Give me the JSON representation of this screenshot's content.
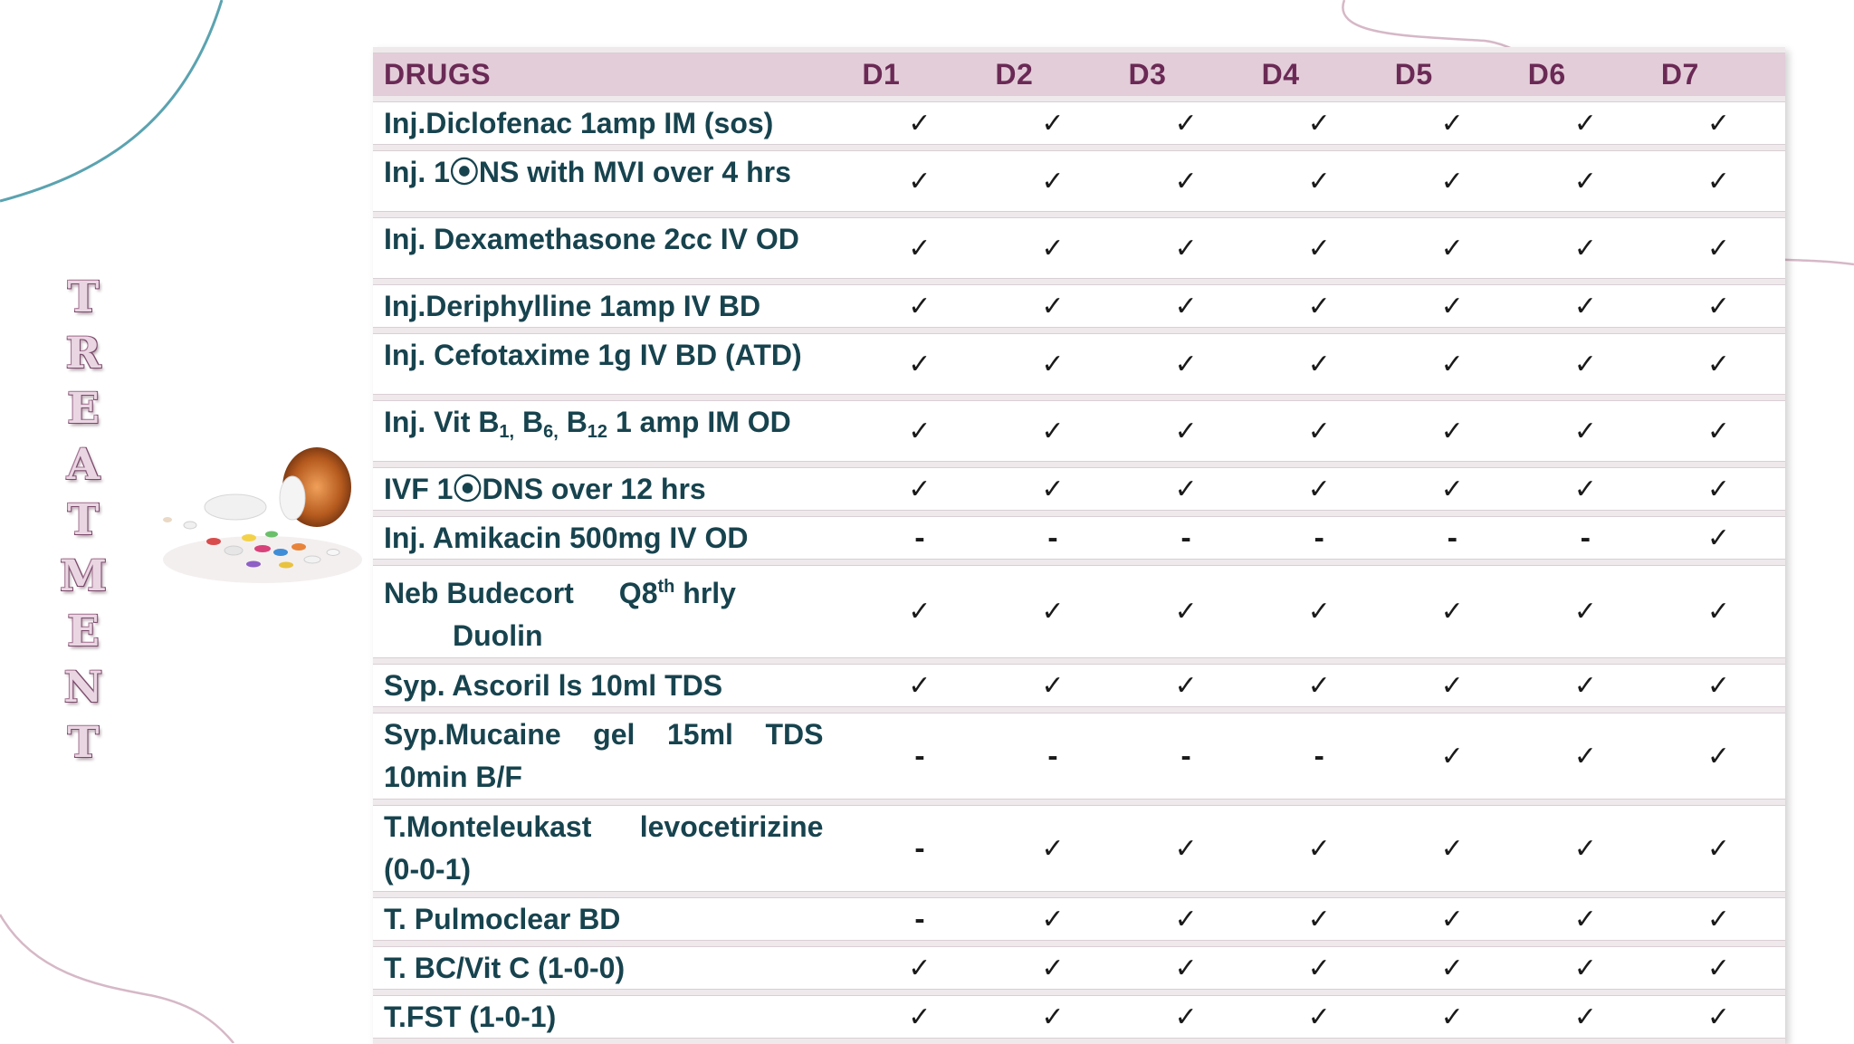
{
  "slide": {
    "vertical_title": "TREATMENT",
    "pills_image": "pills-and-bottle-image"
  },
  "table": {
    "headers": {
      "drug": "DRUGS",
      "days": [
        "D1",
        "D2",
        "D3",
        "D4",
        "D5",
        "D6",
        "D7"
      ]
    },
    "rows": [
      {
        "drug_line1": "Inj.Diclofenac 1amp IM (sos)",
        "marks": [
          "✓",
          "✓",
          "✓",
          "✓",
          "✓",
          "✓",
          "✓"
        ]
      },
      {
        "drug_line1": "Inj. 1⦿NS with MVI over 4 hrs",
        "marks": [
          "✓",
          "✓",
          "✓",
          "✓",
          "✓",
          "✓",
          "✓"
        ]
      },
      {
        "drug_line1": "Inj. Dexamethasone 2cc IV OD",
        "marks": [
          "✓",
          "✓",
          "✓",
          "✓",
          "✓",
          "✓",
          "✓"
        ]
      },
      {
        "drug_line1": "Inj.Deriphylline 1amp IV BD",
        "marks": [
          "✓",
          "✓",
          "✓",
          "✓",
          "✓",
          "✓",
          "✓"
        ]
      },
      {
        "drug_line1": "Inj. Cefotaxime 1g IV BD (ATD)",
        "marks": [
          "✓",
          "✓",
          "✓",
          "✓",
          "✓",
          "✓",
          "✓"
        ]
      },
      {
        "drug_prefix": "Inj. Vit B",
        "sub1": "1,",
        "mid1": " B",
        "sub2": "6,",
        "mid2": " B",
        "sub3": "12",
        "drug_suffix": " 1 amp IM OD",
        "marks": [
          "✓",
          "✓",
          "✓",
          "✓",
          "✓",
          "✓",
          "✓"
        ]
      },
      {
        "drug_line1": "IVF 1⦿DNS over 12 hrs",
        "marks": [
          "✓",
          "✓",
          "✓",
          "✓",
          "✓",
          "✓",
          "✓"
        ]
      },
      {
        "drug_line1": "Inj. Amikacin 500mg IV OD",
        "marks": [
          "-",
          "-",
          "-",
          "-",
          "-",
          "-",
          "✓"
        ]
      },
      {
        "drug_part1": "Neb Budecort",
        "drug_part2": "Q8",
        "drug_sup": "th",
        "drug_part3": " hrly",
        "drug_line2": "Duolin",
        "marks": [
          "✓",
          "✓",
          "✓",
          "✓",
          "✓",
          "✓",
          "✓"
        ]
      },
      {
        "drug_line1": "Syp. Ascoril ls 10ml TDS",
        "marks": [
          "✓",
          "✓",
          "✓",
          "✓",
          "✓",
          "✓",
          "✓"
        ]
      },
      {
        "drug_line1": "Syp.Mucaine    gel    15ml    TDS",
        "drug_line2": "10min B/F",
        "marks": [
          "-",
          "-",
          "-",
          "-",
          "✓",
          "✓",
          "✓"
        ]
      },
      {
        "drug_line1": "T.Monteleukast      levocetirizine",
        "drug_line2": "(0-0-1)",
        "marks": [
          "-",
          "✓",
          "✓",
          "✓",
          "✓",
          "✓",
          "✓"
        ]
      },
      {
        "drug_line1": "T. Pulmoclear BD",
        "marks": [
          "-",
          "✓",
          "✓",
          "✓",
          "✓",
          "✓",
          "✓"
        ]
      },
      {
        "drug_line1": "T. BC/Vit C (1-0-0)",
        "marks": [
          "✓",
          "✓",
          "✓",
          "✓",
          "✓",
          "✓",
          "✓"
        ]
      },
      {
        "drug_line1": "T.FST (1-0-1)",
        "marks": [
          "✓",
          "✓",
          "✓",
          "✓",
          "✓",
          "✓",
          "✓"
        ]
      }
    ]
  },
  "colors": {
    "header_bg": "#e3cdd9",
    "header_text": "#6a2a55",
    "body_text": "#17434e",
    "title_fill": "#ead6e3",
    "curve_teal": "#5ba3b0",
    "curve_pink": "#d6b8c6"
  }
}
